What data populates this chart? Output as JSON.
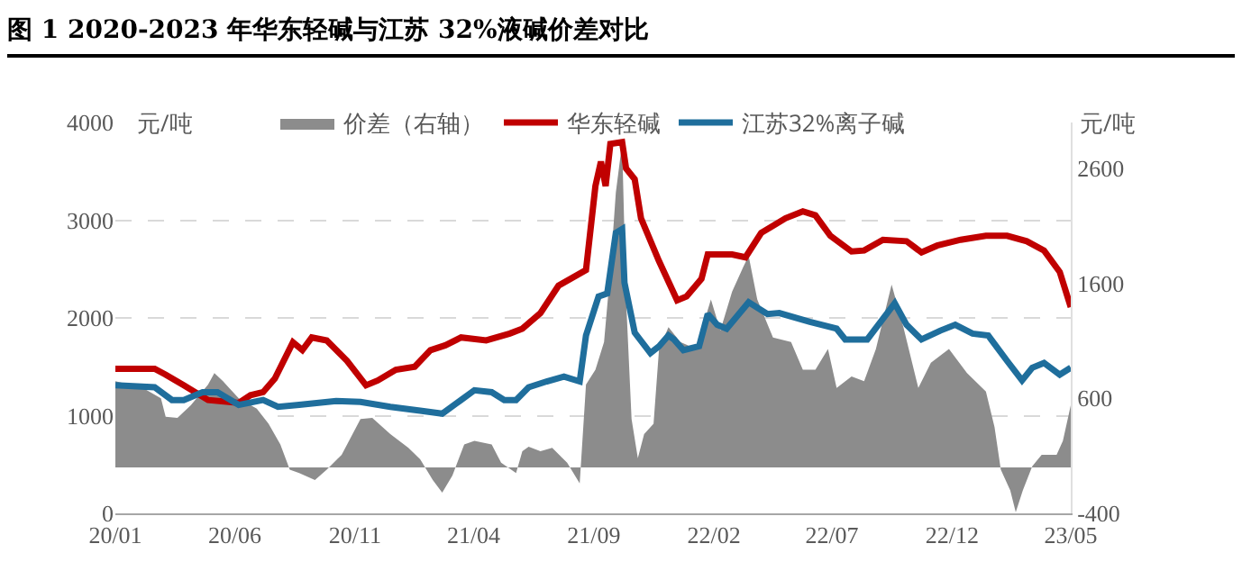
{
  "chart_data": {
    "type": "line",
    "title": "图 1 2020-2023 年华东轻碱与江苏 32%液碱价差对比",
    "ylabel": "元/吨",
    "y2label": "元/吨",
    "xlim": [
      "2020-01-01",
      "2023-05-01"
    ],
    "xticks": [
      {
        "value": "2020-01-01",
        "label": "20/01"
      },
      {
        "value": "2020-06-01",
        "label": "20/06"
      },
      {
        "value": "2020-11-01",
        "label": "20/11"
      },
      {
        "value": "2021-04-01",
        "label": "21/04"
      },
      {
        "value": "2021-09-01",
        "label": "21/09"
      },
      {
        "value": "2022-02-01",
        "label": "22/02"
      },
      {
        "value": "2022-07-01",
        "label": "22/07"
      },
      {
        "value": "2022-12-01",
        "label": "22/12"
      },
      {
        "value": "2023-05-01",
        "label": "23/05"
      }
    ],
    "ylim": [
      0,
      4000
    ],
    "yticks": [
      0,
      1000,
      2000,
      3000,
      4000
    ],
    "y2lim": [
      -400,
      3000
    ],
    "y2ticks": [
      -400,
      600,
      1600,
      2600
    ],
    "grid": "y",
    "legend": "top",
    "series": [
      {
        "name": "价差（右轴）",
        "type": "area",
        "axis": "y2",
        "color": "#8c8c8c",
        "x": [
          "2020-01-01",
          "2020-02-05",
          "2020-02-28",
          "2020-03-05",
          "2020-03-20",
          "2020-04-06",
          "2020-04-28",
          "2020-05-06",
          "2020-05-17",
          "2020-06-06",
          "2020-06-29",
          "2020-07-14",
          "2020-07-29",
          "2020-08-10",
          "2020-08-22",
          "2020-09-11",
          "2020-09-26",
          "2020-10-15",
          "2020-11-08",
          "2020-11-23",
          "2020-12-16",
          "2021-01-08",
          "2021-01-23",
          "2021-02-08",
          "2021-02-20",
          "2021-03-05",
          "2021-03-20",
          "2021-04-02",
          "2021-04-24",
          "2021-05-06",
          "2021-05-25",
          "2021-06-02",
          "2021-06-10",
          "2021-06-25",
          "2021-07-10",
          "2021-07-29",
          "2021-08-14",
          "2021-08-22",
          "2021-09-03",
          "2021-09-14",
          "2021-09-22",
          "2021-09-29",
          "2021-10-07",
          "2021-10-12",
          "2021-10-19",
          "2021-10-27",
          "2021-11-04",
          "2021-11-16",
          "2021-11-23",
          "2021-12-05",
          "2021-12-20",
          "2022-01-09",
          "2022-01-28",
          "2022-02-09",
          "2022-02-24",
          "2022-03-10",
          "2022-03-17",
          "2022-03-28",
          "2022-04-17",
          "2022-05-10",
          "2022-05-25",
          "2022-06-10",
          "2022-06-26",
          "2022-07-07",
          "2022-07-26",
          "2022-08-11",
          "2022-08-26",
          "2022-09-15",
          "2022-09-30",
          "2022-10-19",
          "2022-11-04",
          "2022-11-27",
          "2022-12-20",
          "2023-01-13",
          "2023-01-24",
          "2023-02-01",
          "2023-02-13",
          "2023-02-20",
          "2023-03-01",
          "2023-03-13",
          "2023-03-25",
          "2023-04-13",
          "2023-04-21",
          "2023-05-01"
        ],
        "values": [
          750,
          690,
          600,
          440,
          430,
          540,
          720,
          820,
          750,
          600,
          510,
          380,
          200,
          -20,
          -50,
          -110,
          -20,
          110,
          420,
          430,
          290,
          170,
          70,
          -110,
          -220,
          -70,
          200,
          230,
          200,
          40,
          -50,
          140,
          180,
          140,
          170,
          40,
          -140,
          720,
          850,
          1090,
          1710,
          2390,
          2820,
          1460,
          420,
          80,
          290,
          380,
          1030,
          1220,
          1090,
          1030,
          1460,
          1190,
          1530,
          1740,
          1840,
          1460,
          1130,
          1090,
          850,
          850,
          1030,
          690,
          790,
          750,
          1030,
          1590,
          1220,
          690,
          910,
          1030,
          820,
          660,
          350,
          -20,
          -200,
          -390,
          -200,
          10,
          110,
          110,
          230,
          540
        ]
      },
      {
        "name": "华东轻碱",
        "type": "line",
        "color": "#c00000",
        "x": [
          "2020-01-01",
          "2020-02-20",
          "2020-03-05",
          "2020-03-28",
          "2020-04-28",
          "2020-06-06",
          "2020-06-21",
          "2020-07-07",
          "2020-07-22",
          "2020-08-14",
          "2020-08-26",
          "2020-09-07",
          "2020-09-26",
          "2020-10-22",
          "2020-11-15",
          "2020-11-30",
          "2020-12-23",
          "2021-01-16",
          "2021-02-05",
          "2021-02-24",
          "2021-03-16",
          "2021-04-17",
          "2021-05-17",
          "2021-06-02",
          "2021-06-25",
          "2021-07-18",
          "2021-08-22",
          "2021-09-03",
          "2021-09-10",
          "2021-09-16",
          "2021-09-22",
          "2021-10-07",
          "2021-10-12",
          "2021-10-23",
          "2021-10-31",
          "2021-11-23",
          "2021-12-16",
          "2021-12-28",
          "2022-01-16",
          "2022-01-24",
          "2022-02-24",
          "2022-03-13",
          "2022-04-02",
          "2022-05-03",
          "2022-05-25",
          "2022-06-10",
          "2022-06-29",
          "2022-07-26",
          "2022-08-11",
          "2022-09-04",
          "2022-10-04",
          "2022-10-23",
          "2022-11-12",
          "2022-12-12",
          "2023-01-13",
          "2023-02-09",
          "2023-03-06",
          "2023-03-28",
          "2023-04-17",
          "2023-05-01"
        ],
        "values": [
          1480,
          1480,
          1420,
          1310,
          1160,
          1130,
          1210,
          1240,
          1380,
          1750,
          1670,
          1800,
          1770,
          1560,
          1310,
          1360,
          1470,
          1500,
          1670,
          1720,
          1800,
          1770,
          1840,
          1890,
          2050,
          2330,
          2490,
          3350,
          3600,
          3350,
          3780,
          3800,
          3530,
          3420,
          3020,
          2580,
          2180,
          2220,
          2400,
          2650,
          2650,
          2620,
          2870,
          3020,
          3090,
          3050,
          2840,
          2680,
          2690,
          2800,
          2785,
          2670,
          2740,
          2800,
          2840,
          2840,
          2785,
          2690,
          2470,
          2110
        ]
      },
      {
        "name": "江苏32%离子碱",
        "type": "line",
        "color": "#1f6e9c",
        "x": [
          "2020-01-01",
          "2020-02-20",
          "2020-03-13",
          "2020-03-28",
          "2020-04-21",
          "2020-05-10",
          "2020-06-06",
          "2020-07-07",
          "2020-07-26",
          "2020-08-22",
          "2020-10-08",
          "2020-11-08",
          "2020-12-16",
          "2021-01-23",
          "2021-02-20",
          "2021-03-16",
          "2021-04-02",
          "2021-04-24",
          "2021-05-10",
          "2021-05-25",
          "2021-06-10",
          "2021-07-03",
          "2021-07-25",
          "2021-08-14",
          "2021-08-22",
          "2021-09-07",
          "2021-09-18",
          "2021-09-29",
          "2021-10-07",
          "2021-10-10",
          "2021-10-23",
          "2021-11-12",
          "2021-11-23",
          "2021-12-05",
          "2021-12-12",
          "2021-12-24",
          "2022-01-13",
          "2022-01-24",
          "2022-02-05",
          "2022-02-17",
          "2022-03-17",
          "2022-04-10",
          "2022-04-25",
          "2022-06-03",
          "2022-07-07",
          "2022-07-18",
          "2022-08-15",
          "2022-09-19",
          "2022-10-04",
          "2022-10-23",
          "2022-11-16",
          "2022-12-05",
          "2022-12-27",
          "2023-01-16",
          "2023-02-09",
          "2023-02-28",
          "2023-03-13",
          "2023-03-28",
          "2023-04-17",
          "2023-05-01"
        ],
        "values": [
          1310,
          1290,
          1160,
          1160,
          1240,
          1240,
          1110,
          1160,
          1090,
          1110,
          1150,
          1140,
          1090,
          1050,
          1020,
          1160,
          1260,
          1240,
          1160,
          1160,
          1290,
          1350,
          1400,
          1350,
          1820,
          2220,
          2250,
          2870,
          2910,
          2360,
          1850,
          1640,
          1710,
          1820,
          1780,
          1670,
          1710,
          2040,
          1930,
          1890,
          2160,
          2040,
          2050,
          1960,
          1890,
          1780,
          1780,
          2150,
          1930,
          1780,
          1870,
          1930,
          1840,
          1820,
          1560,
          1360,
          1490,
          1540,
          1420,
          1490
        ]
      }
    ]
  }
}
